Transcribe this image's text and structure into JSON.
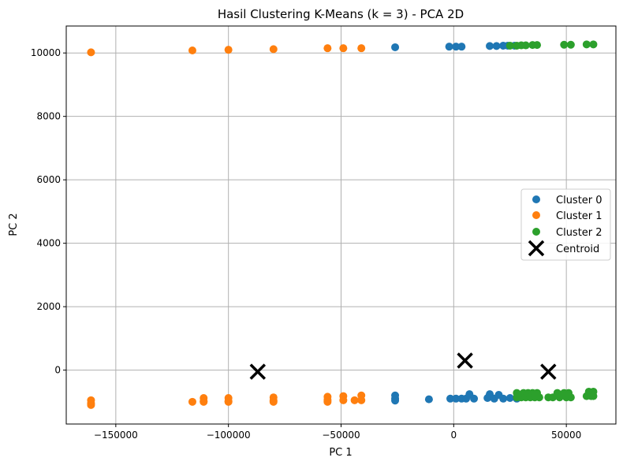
{
  "chart_data": {
    "type": "scatter",
    "title": "Hasil Clustering K-Means (k = 3) - PCA 2D",
    "xlabel": "PC 1",
    "ylabel": "PC 2",
    "xlim": [
      -172000,
      72000
    ],
    "ylim": [
      -1700,
      10850
    ],
    "xticks": [
      -150000,
      -100000,
      -50000,
      0,
      50000
    ],
    "yticks": [
      0,
      2000,
      4000,
      6000,
      8000,
      10000
    ],
    "grid": true,
    "legend_position": "center-right",
    "series": [
      {
        "name": "Cluster 0",
        "color": "#1f77b4",
        "points": [
          [
            -26000,
            10180
          ],
          [
            -2000,
            10200
          ],
          [
            1000,
            10200
          ],
          [
            3500,
            10200
          ],
          [
            16000,
            10220
          ],
          [
            19000,
            10220
          ],
          [
            22000,
            10230
          ],
          [
            24000,
            10230
          ],
          [
            27000,
            10230
          ],
          [
            -26000,
            -800
          ],
          [
            -26000,
            -900
          ],
          [
            -26000,
            -960
          ],
          [
            -11000,
            -920
          ],
          [
            -1500,
            -900
          ],
          [
            1000,
            -900
          ],
          [
            3500,
            -900
          ],
          [
            5500,
            -900
          ],
          [
            7000,
            -760
          ],
          [
            9000,
            -900
          ],
          [
            15000,
            -880
          ],
          [
            16000,
            -760
          ],
          [
            18000,
            -900
          ],
          [
            20000,
            -780
          ],
          [
            22000,
            -900
          ],
          [
            25000,
            -880
          ],
          [
            28000,
            -900
          ]
        ]
      },
      {
        "name": "Cluster 1",
        "color": "#ff7f0e",
        "points": [
          [
            -161000,
            10020
          ],
          [
            -116000,
            10080
          ],
          [
            -100000,
            10100
          ],
          [
            -80000,
            10120
          ],
          [
            -56000,
            10150
          ],
          [
            -49000,
            10150
          ],
          [
            -41000,
            10150
          ],
          [
            -161000,
            -950
          ],
          [
            -161000,
            -1050
          ],
          [
            -161000,
            -1100
          ],
          [
            -116000,
            -1000
          ],
          [
            -111000,
            -880
          ],
          [
            -111000,
            -980
          ],
          [
            -111000,
            -1000
          ],
          [
            -100000,
            -880
          ],
          [
            -100000,
            -980
          ],
          [
            -100000,
            -1000
          ],
          [
            -80000,
            -860
          ],
          [
            -80000,
            -960
          ],
          [
            -80000,
            -1000
          ],
          [
            -56000,
            -840
          ],
          [
            -56000,
            -940
          ],
          [
            -56000,
            -1000
          ],
          [
            -49000,
            -820
          ],
          [
            -49000,
            -950
          ],
          [
            -44000,
            -950
          ],
          [
            -41000,
            -800
          ],
          [
            -41000,
            -950
          ]
        ]
      },
      {
        "name": "Cluster 2",
        "color": "#2ca02c",
        "points": [
          [
            25000,
            10230
          ],
          [
            28000,
            10230
          ],
          [
            30000,
            10240
          ],
          [
            32000,
            10240
          ],
          [
            35000,
            10250
          ],
          [
            37000,
            10250
          ],
          [
            49000,
            10260
          ],
          [
            52000,
            10260
          ],
          [
            59000,
            10270
          ],
          [
            62000,
            10270
          ],
          [
            28000,
            -720
          ],
          [
            28000,
            -860
          ],
          [
            30000,
            -860
          ],
          [
            31000,
            -720
          ],
          [
            32000,
            -860
          ],
          [
            33000,
            -720
          ],
          [
            34000,
            -860
          ],
          [
            35000,
            -720
          ],
          [
            36000,
            -860
          ],
          [
            37000,
            -720
          ],
          [
            38000,
            -860
          ],
          [
            42000,
            -860
          ],
          [
            44000,
            -860
          ],
          [
            46000,
            -720
          ],
          [
            47000,
            -860
          ],
          [
            49000,
            -720
          ],
          [
            50000,
            -860
          ],
          [
            51000,
            -720
          ],
          [
            52000,
            -860
          ],
          [
            59000,
            -820
          ],
          [
            60000,
            -680
          ],
          [
            61000,
            -820
          ],
          [
            62000,
            -680
          ],
          [
            62000,
            -820
          ]
        ]
      }
    ],
    "centroids": {
      "name": "Centroid",
      "color": "#000000",
      "points": [
        [
          -87000,
          -50
        ],
        [
          5000,
          300
        ],
        [
          42000,
          -50
        ]
      ]
    }
  }
}
